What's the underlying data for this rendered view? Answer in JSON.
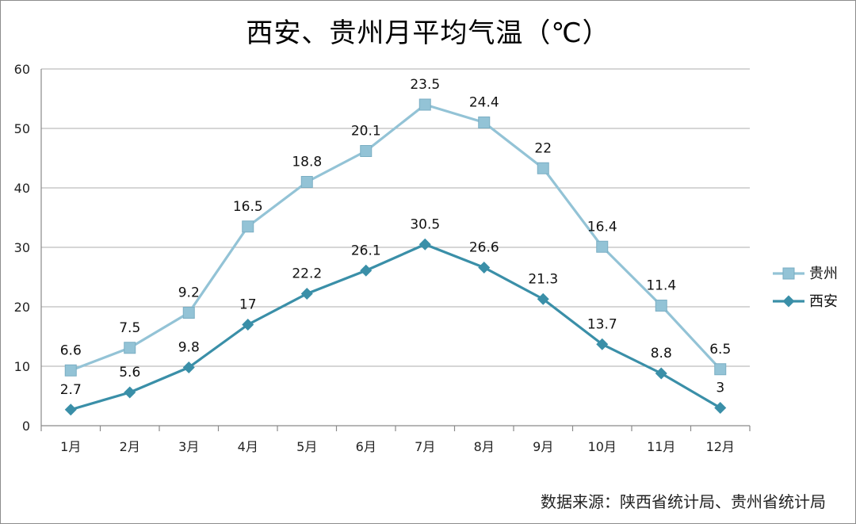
{
  "chart_data": {
    "type": "line",
    "title": "西安、贵州月平均气温（℃）",
    "categories": [
      "1月",
      "2月",
      "3月",
      "4月",
      "5月",
      "6月",
      "7月",
      "8月",
      "9月",
      "10月",
      "11月",
      "12月"
    ],
    "ylim": [
      0,
      60
    ],
    "yticks": [
      0,
      10,
      20,
      30,
      40,
      50,
      60
    ],
    "grid": true,
    "legend_position": "right",
    "stacked": true,
    "series": [
      {
        "name": "贵州",
        "values": [
          6.6,
          7.5,
          9.2,
          16.5,
          18.8,
          20.1,
          23.5,
          24.4,
          22,
          16.4,
          11.4,
          6.5
        ],
        "color": "#93c3d6",
        "marker": "square",
        "stacked_on": "西安"
      },
      {
        "name": "西安",
        "values": [
          2.7,
          5.6,
          9.8,
          17,
          22.2,
          26.1,
          30.5,
          26.6,
          21.3,
          13.7,
          8.8,
          3
        ],
        "color": "#3a8fa8",
        "marker": "diamond"
      }
    ]
  },
  "source_text": "数据来源：陕西省统计局、贵州省统计局"
}
